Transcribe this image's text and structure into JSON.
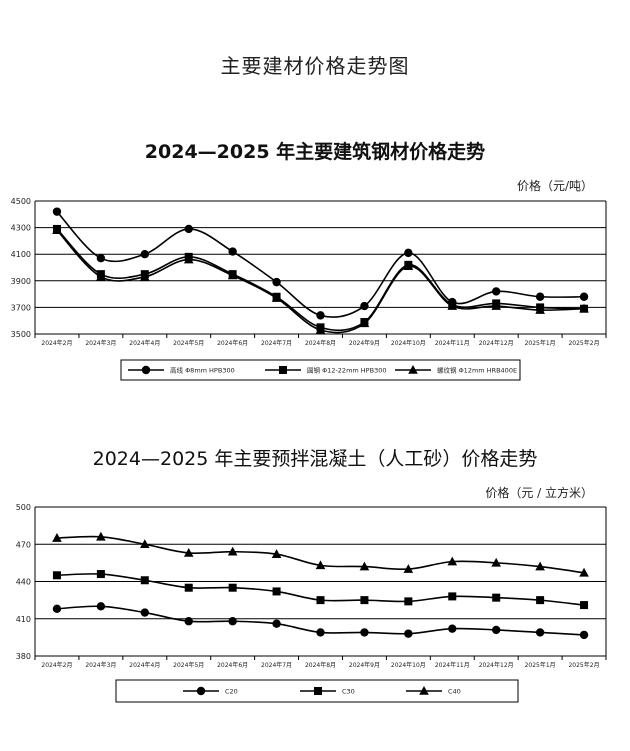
{
  "page_title": "主要建材价格走势图",
  "chart_data": [
    {
      "type": "line",
      "title": "2024—2025 年主要建筑钢材价格走势",
      "ylabel": "价格（元/吨）",
      "ylim": [
        3500,
        4500
      ],
      "yticks": [
        3500,
        3700,
        3900,
        4100,
        4300,
        4500
      ],
      "grid": true,
      "legend_position": "bottom",
      "categories": [
        "2024年2月",
        "2024年3月",
        "2024年4月",
        "2024年5月",
        "2024年6月",
        "2024年7月",
        "2024年8月",
        "2024年9月",
        "2024年10月",
        "2024年11月",
        "2024年12月",
        "2025年1月",
        "2025年2月"
      ],
      "series": [
        {
          "name": "高线 Φ8mm HPB300",
          "marker": "circle",
          "values": [
            4420,
            4070,
            4100,
            4290,
            4120,
            3890,
            3640,
            3710,
            4110,
            3740,
            3820,
            3780,
            3780
          ]
        },
        {
          "name": "圆钢 Φ12-22mm HPB300",
          "marker": "square",
          "values": [
            4290,
            3950,
            3950,
            4080,
            3950,
            3780,
            3550,
            3590,
            4020,
            3720,
            3730,
            3700,
            3690
          ]
        },
        {
          "name": "螺纹钢 Φ12mm HRB400E",
          "marker": "triangle",
          "values": [
            4280,
            3930,
            3930,
            4060,
            3940,
            3770,
            3530,
            3580,
            4010,
            3710,
            3710,
            3680,
            3690
          ]
        }
      ]
    },
    {
      "type": "line",
      "title": "2024—2025 年主要预拌混凝土（人工砂）价格走势",
      "ylabel": "价格（元 / 立方米）",
      "ylim": [
        380,
        500
      ],
      "yticks": [
        380,
        410,
        440,
        470,
        500
      ],
      "grid": true,
      "legend_position": "bottom",
      "categories": [
        "2024年2月",
        "2024年3月",
        "2024年4月",
        "2024年5月",
        "2024年6月",
        "2024年7月",
        "2024年8月",
        "2024年9月",
        "2024年10月",
        "2024年11月",
        "2024年12月",
        "2025年1月",
        "2025年2月"
      ],
      "series": [
        {
          "name": "C20",
          "marker": "circle",
          "values": [
            418,
            420,
            415,
            408,
            408,
            406,
            399,
            399,
            398,
            402,
            401,
            399,
            397
          ]
        },
        {
          "name": "C30",
          "marker": "square",
          "values": [
            445,
            446,
            441,
            435,
            435,
            432,
            425,
            425,
            424,
            428,
            427,
            425,
            421
          ]
        },
        {
          "name": "C40",
          "marker": "triangle",
          "values": [
            475,
            476,
            470,
            463,
            464,
            462,
            453,
            452,
            450,
            456,
            455,
            452,
            447
          ]
        }
      ]
    }
  ]
}
